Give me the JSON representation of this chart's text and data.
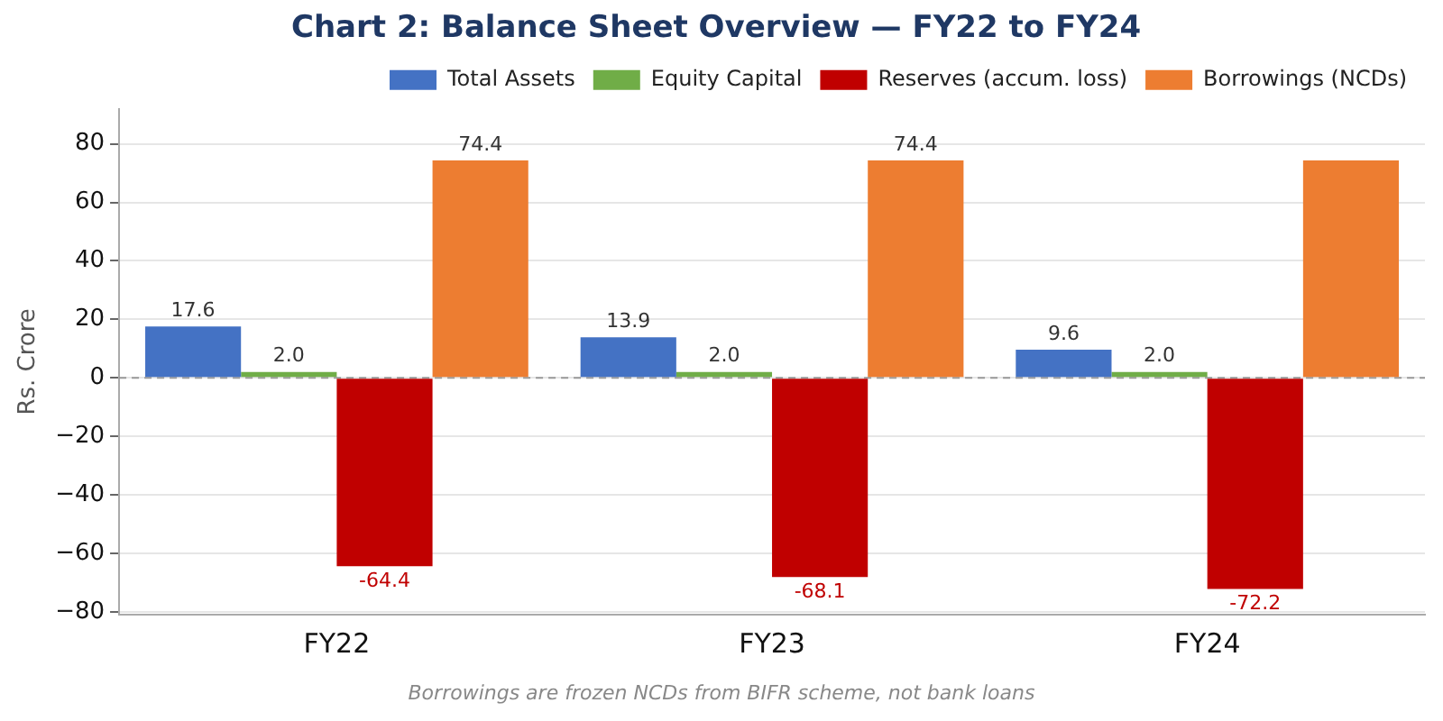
{
  "chart_data": {
    "type": "bar",
    "title": "Chart 2: Balance Sheet Overview — FY22 to FY24",
    "ylabel": "Rs. Crore",
    "categories": [
      "FY22",
      "FY23",
      "FY24"
    ],
    "series": [
      {
        "name": "Total Assets",
        "color": "#4472c4",
        "values": [
          17.6,
          13.9,
          9.6
        ],
        "value_labels": [
          "17.6",
          "13.9",
          "9.6"
        ]
      },
      {
        "name": "Equity Capital",
        "color": "#70ad47",
        "values": [
          2.0,
          2.0,
          2.0
        ],
        "value_labels": [
          "2.0",
          "2.0",
          "2.0"
        ]
      },
      {
        "name": "Reserves (accum. loss)",
        "color": "#c00000",
        "values": [
          -64.4,
          -68.1,
          -72.2
        ],
        "value_labels": [
          "-64.4",
          "-68.1",
          "-72.2"
        ]
      },
      {
        "name": "Borrowings (NCDs)",
        "color": "#ed7d31",
        "values": [
          74.4,
          74.4,
          74.4
        ],
        "value_labels": [
          "74.4",
          "74.4",
          null
        ]
      }
    ],
    "ylim": [
      -81,
      92
    ],
    "yticks": [
      -80,
      -60,
      -40,
      -20,
      0,
      20,
      40,
      60,
      80
    ],
    "grid": "y",
    "legend": "top right",
    "ref_lines": [
      {
        "axis": "y",
        "value": 0,
        "color": "#999999",
        "line_style": "dashed"
      }
    ],
    "annotations": [
      "Borrowings are frozen NCDs from BIFR scheme, not bank loans"
    ]
  }
}
